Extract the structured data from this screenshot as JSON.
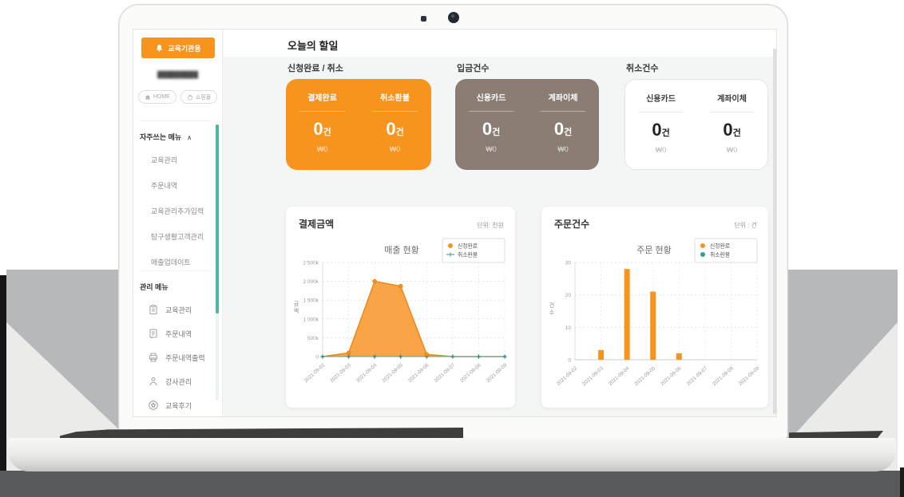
{
  "sidebar": {
    "header_label": "교육기관용",
    "business_name_masked": "█████████",
    "home_button_label": "HOME",
    "shop_button_label": "쇼핑몰",
    "favorites_section": {
      "title": "자주쓰는 메뉴",
      "collapse_indicator": "∧",
      "items": [
        "교육관리",
        "주문내역",
        "교육관리추가입력",
        "탐구생활고객관리",
        "매출업데이트"
      ]
    },
    "manage_section": {
      "title": "관리 메뉴",
      "items": [
        {
          "icon": "clipboard-icon",
          "label": "교육관리"
        },
        {
          "icon": "order-list-icon",
          "label": "주문내역"
        },
        {
          "icon": "printer-icon",
          "label": "주문내역출력"
        },
        {
          "icon": "person-icon",
          "label": "강사관리"
        },
        {
          "icon": "review-icon",
          "label": "교육후기"
        }
      ]
    }
  },
  "main": {
    "page_title": "오늘의 할일",
    "summary_cards": [
      {
        "section_label": "신청완료 / 취소",
        "style": "orange",
        "columns": [
          {
            "label": "결제완료",
            "count": "0",
            "count_unit": "건",
            "amount": "₩0"
          },
          {
            "label": "취소환불",
            "count": "0",
            "count_unit": "건",
            "amount": "₩0"
          }
        ]
      },
      {
        "section_label": "입금건수",
        "style": "brown",
        "columns": [
          {
            "label": "신용카드",
            "count": "0",
            "count_unit": "건",
            "amount": "₩0"
          },
          {
            "label": "계좌이체",
            "count": "0",
            "count_unit": "건",
            "amount": "₩0"
          }
        ]
      },
      {
        "section_label": "취소건수",
        "style": "white",
        "columns": [
          {
            "label": "신용카드",
            "count": "0",
            "count_unit": "건",
            "amount": "₩0"
          },
          {
            "label": "계좌이체",
            "count": "0",
            "count_unit": "건",
            "amount": "₩0"
          }
        ]
      }
    ]
  },
  "chart_data": [
    {
      "type": "area",
      "card_title": "결제금액",
      "unit_label": "단위: 천원",
      "title": "매출 현황",
      "x": [
        "2021-09-02",
        "2021-09-03",
        "2021-09-04",
        "2021-09-05",
        "2021-09-06",
        "2021-09-07",
        "2021-09-08",
        "2021-09-09"
      ],
      "series": [
        {
          "name": "신청완료",
          "color": "#f7941d",
          "marker": "dot",
          "values": [
            0,
            100,
            2000,
            1870,
            60,
            0,
            0,
            0
          ]
        },
        {
          "name": "취소환불",
          "color": "#45b0a0",
          "marker": "plus-line",
          "values": [
            0,
            0,
            0,
            0,
            0,
            0,
            0,
            0
          ]
        }
      ],
      "ylabel": "금액",
      "ylim": [
        0,
        2500
      ],
      "ytick_values": [
        0,
        500,
        1000,
        1500,
        2000,
        2500
      ],
      "ytick_labels": [
        "0",
        "500k",
        "1 000k",
        "1 500k",
        "2 000k",
        "2 500k"
      ],
      "grid": "dashed",
      "legend_position": "top-right"
    },
    {
      "type": "bar",
      "card_title": "주문건수",
      "unit_label": "단위 : 건",
      "title": "주문 현황",
      "x": [
        "2021-09-02",
        "2021-09-03",
        "2021-09-04",
        "2021-09-05",
        "2021-09-06",
        "2021-09-07",
        "2021-09-08",
        "2021-09-09"
      ],
      "series": [
        {
          "name": "신청완료",
          "color": "#f7941d",
          "marker": "dot",
          "values": [
            0,
            3,
            28,
            21,
            2,
            0,
            0,
            0
          ]
        },
        {
          "name": "취소환불",
          "color": "#2ea393",
          "marker": "dot",
          "values": [
            0,
            0,
            0,
            0,
            0,
            0,
            0,
            0
          ]
        }
      ],
      "ylabel": "건수",
      "ylim": [
        0,
        30
      ],
      "ytick_values": [
        0,
        10,
        20,
        30
      ],
      "ytick_labels": [
        "0",
        "10",
        "20",
        "30"
      ],
      "grid": "dashed",
      "legend_position": "top-right"
    }
  ],
  "colors": {
    "accent_orange": "#f7941d",
    "brown_card": "#8b7d73",
    "teal": "#4db6a4",
    "main_bg": "#f4f5f5",
    "backdrop_gray": "#b6b8ba",
    "bottom_backdrop": "#58595b"
  }
}
